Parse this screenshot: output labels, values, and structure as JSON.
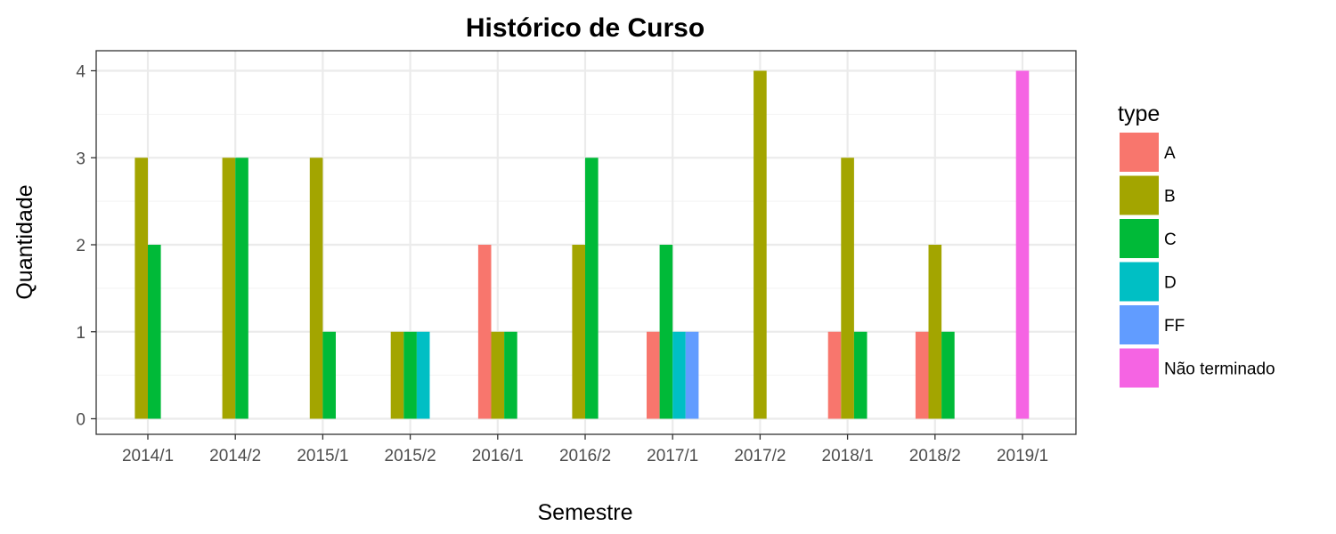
{
  "chart_data": {
    "type": "bar",
    "title": "Histórico de Curso",
    "xlabel": "Semestre",
    "ylabel": "Quantidade",
    "categories": [
      "2014/1",
      "2014/2",
      "2015/1",
      "2015/2",
      "2016/1",
      "2016/2",
      "2017/1",
      "2017/2",
      "2018/1",
      "2018/2",
      "2019/1"
    ],
    "y_ticks": [
      "0",
      "1",
      "2",
      "3",
      "4"
    ],
    "ylim": [
      0,
      4
    ],
    "grid": true,
    "legend": {
      "title": "type",
      "placement": "right",
      "items": [
        "A",
        "B",
        "C",
        "D",
        "FF",
        "Não terminado"
      ]
    },
    "series": [
      {
        "name": "A",
        "color": "#F8766D",
        "values": [
          null,
          null,
          null,
          null,
          2,
          null,
          1,
          null,
          1,
          1,
          null
        ]
      },
      {
        "name": "B",
        "color": "#A3A500",
        "values": [
          3,
          3,
          3,
          1,
          1,
          2,
          null,
          4,
          3,
          2,
          null
        ]
      },
      {
        "name": "C",
        "color": "#00BA38",
        "values": [
          2,
          3,
          1,
          1,
          1,
          3,
          2,
          null,
          1,
          1,
          null
        ]
      },
      {
        "name": "D",
        "color": "#00BFC4",
        "values": [
          null,
          null,
          null,
          1,
          null,
          null,
          1,
          null,
          null,
          null,
          null
        ]
      },
      {
        "name": "FF",
        "color": "#619CFF",
        "values": [
          null,
          null,
          null,
          null,
          null,
          null,
          1,
          null,
          null,
          null,
          null
        ]
      },
      {
        "name": "Não terminado",
        "color": "#F564E3",
        "values": [
          null,
          null,
          null,
          null,
          null,
          null,
          null,
          null,
          null,
          null,
          4
        ]
      }
    ]
  }
}
